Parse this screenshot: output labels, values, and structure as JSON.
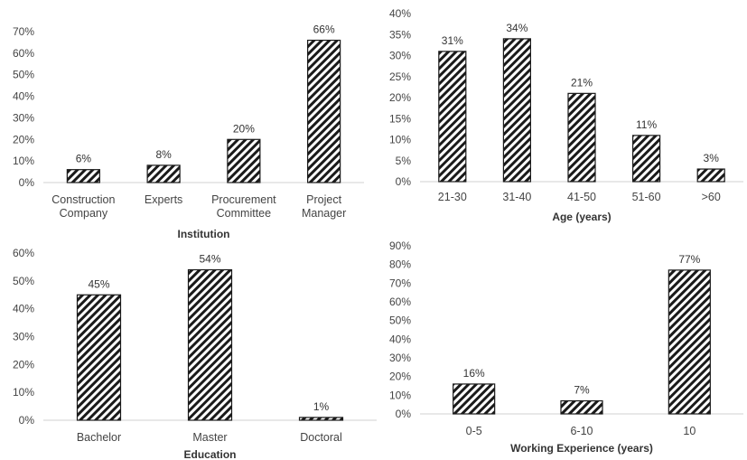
{
  "chart_data": [
    {
      "type": "bar",
      "categories": [
        [
          "Construction",
          "Company"
        ],
        [
          "Experts"
        ],
        [
          "Procurement",
          "Committee"
        ],
        [
          "Project",
          "Manager"
        ]
      ],
      "values": [
        6,
        8,
        20,
        66
      ],
      "value_labels": [
        "6%",
        "8%",
        "20%",
        "66%"
      ],
      "xlabel": "Institution",
      "ylabel": "",
      "ylim": [
        0,
        70
      ],
      "yticks": [
        "0%",
        "10%",
        "20%",
        "30%",
        "40%",
        "50%",
        "60%",
        "70%"
      ],
      "grid": false,
      "legend": "none"
    },
    {
      "type": "bar",
      "categories": [
        [
          "21-30"
        ],
        [
          "31-40"
        ],
        [
          "41-50"
        ],
        [
          "51-60"
        ],
        [
          ">60"
        ]
      ],
      "values": [
        31,
        34,
        21,
        11,
        3
      ],
      "value_labels": [
        "31%",
        "34%",
        "21%",
        "11%",
        "3%"
      ],
      "xlabel": "Age (years)",
      "ylabel": "",
      "ylim": [
        0,
        40
      ],
      "yticks": [
        "0%",
        "5%",
        "10%",
        "15%",
        "20%",
        "25%",
        "30%",
        "35%",
        "40%"
      ],
      "grid": false,
      "legend": "none"
    },
    {
      "type": "bar",
      "categories": [
        [
          "Bachelor"
        ],
        [
          "Master"
        ],
        [
          "Doctoral"
        ]
      ],
      "values": [
        45,
        54,
        1
      ],
      "value_labels": [
        "45%",
        "54%",
        "1%"
      ],
      "xlabel": "Education",
      "ylabel": "",
      "ylim": [
        0,
        60
      ],
      "yticks": [
        "0%",
        "10%",
        "20%",
        "30%",
        "40%",
        "50%",
        "60%"
      ],
      "grid": false,
      "legend": "none"
    },
    {
      "type": "bar",
      "categories": [
        [
          "0-5"
        ],
        [
          "6-10"
        ],
        [
          "10"
        ]
      ],
      "values": [
        16,
        7,
        77
      ],
      "value_labels": [
        "16%",
        "7%",
        "77%"
      ],
      "xlabel": "Working Experience (years)",
      "ylabel": "",
      "ylim": [
        0,
        90
      ],
      "yticks": [
        "0%",
        "10%",
        "20%",
        "30%",
        "40%",
        "50%",
        "60%",
        "70%",
        "80%",
        "90%"
      ],
      "grid": false,
      "legend": "none"
    }
  ],
  "style": {
    "bar_fill_pattern": "diagonal-hatch",
    "hatch_color": "#1a1a1a",
    "bar_border": "#1a1a1a",
    "axis_color": "#d0d0d0"
  }
}
